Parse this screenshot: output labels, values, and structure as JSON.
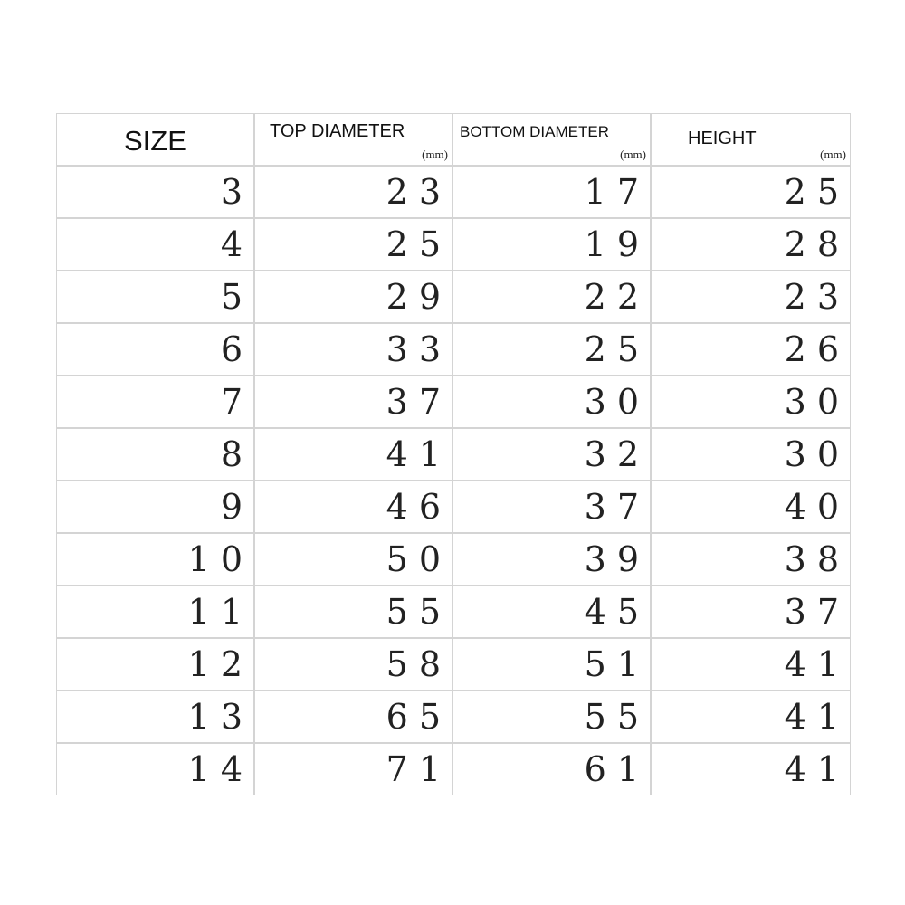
{
  "table": {
    "columns": [
      {
        "title": "SIZE"
      },
      {
        "title": "TOP DIAMETER",
        "unit": "(mm)"
      },
      {
        "title": "BOTTOM DIAMETER",
        "unit": "(mm)"
      },
      {
        "title": "HEIGHT",
        "unit": "(mm)"
      }
    ],
    "rows": [
      [
        3,
        23,
        17,
        25
      ],
      [
        4,
        25,
        19,
        28
      ],
      [
        5,
        29,
        22,
        23
      ],
      [
        6,
        33,
        25,
        26
      ],
      [
        7,
        37,
        30,
        30
      ],
      [
        8,
        41,
        32,
        30
      ],
      [
        9,
        46,
        37,
        40
      ],
      [
        10,
        50,
        39,
        38
      ],
      [
        11,
        55,
        45,
        37
      ],
      [
        12,
        58,
        51,
        41
      ],
      [
        13,
        65,
        55,
        41
      ],
      [
        14,
        71,
        61,
        41
      ]
    ]
  }
}
